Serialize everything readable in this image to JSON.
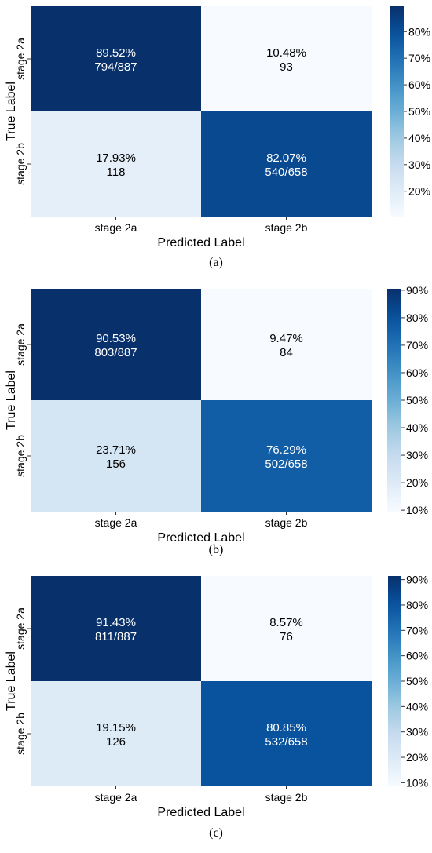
{
  "chart_data": [
    {
      "type": "heatmap",
      "caption": "(a)",
      "xlabel": "Predicted Label",
      "ylabel": "True Label",
      "x_categories": [
        "stage 2a",
        "stage 2b"
      ],
      "y_categories": [
        "stage 2a",
        "stage 2b"
      ],
      "cells": [
        [
          {
            "percent": 89.52,
            "text1": "89.52%",
            "text2": "794/887"
          },
          {
            "percent": 10.48,
            "text1": "10.48%",
            "text2": "93"
          }
        ],
        [
          {
            "percent": 17.93,
            "text1": "17.93%",
            "text2": "118"
          },
          {
            "percent": 82.07,
            "text1": "82.07%",
            "text2": "540/658"
          }
        ]
      ],
      "colorbar": {
        "min": 10.48,
        "max": 89.52,
        "ticks": [
          20,
          30,
          40,
          50,
          60,
          70,
          80
        ],
        "tick_labels": [
          "20%",
          "30%",
          "40%",
          "50%",
          "60%",
          "70%",
          "80%"
        ]
      }
    },
    {
      "type": "heatmap",
      "caption": "(b)",
      "xlabel": "Predicted Label",
      "ylabel": "True Label",
      "x_categories": [
        "stage 2a",
        "stage 2b"
      ],
      "y_categories": [
        "stage 2a",
        "stage 2b"
      ],
      "cells": [
        [
          {
            "percent": 90.53,
            "text1": "90.53%",
            "text2": "803/887"
          },
          {
            "percent": 9.47,
            "text1": "9.47%",
            "text2": "84"
          }
        ],
        [
          {
            "percent": 23.71,
            "text1": "23.71%",
            "text2": "156"
          },
          {
            "percent": 76.29,
            "text1": "76.29%",
            "text2": "502/658"
          }
        ]
      ],
      "colorbar": {
        "min": 9.47,
        "max": 90.53,
        "ticks": [
          10,
          20,
          30,
          40,
          50,
          60,
          70,
          80,
          90
        ],
        "tick_labels": [
          "10%",
          "20%",
          "30%",
          "40%",
          "50%",
          "60%",
          "70%",
          "80%",
          "90%"
        ]
      }
    },
    {
      "type": "heatmap",
      "caption": "(c)",
      "xlabel": "Predicted Label",
      "ylabel": "True Label",
      "x_categories": [
        "stage 2a",
        "stage 2b"
      ],
      "y_categories": [
        "stage 2a",
        "stage 2b"
      ],
      "cells": [
        [
          {
            "percent": 91.43,
            "text1": "91.43%",
            "text2": "811/887"
          },
          {
            "percent": 8.57,
            "text1": "8.57%",
            "text2": "76"
          }
        ],
        [
          {
            "percent": 19.15,
            "text1": "19.15%",
            "text2": "126"
          },
          {
            "percent": 80.85,
            "text1": "80.85%",
            "text2": "532/658"
          }
        ]
      ],
      "colorbar": {
        "min": 8.57,
        "max": 91.43,
        "ticks": [
          10,
          20,
          30,
          40,
          50,
          60,
          70,
          80,
          90
        ],
        "tick_labels": [
          "10%",
          "20%",
          "30%",
          "40%",
          "50%",
          "60%",
          "70%",
          "80%",
          "90%"
        ]
      }
    }
  ],
  "colors": {
    "colormap": [
      "#f7fbff",
      "#deebf7",
      "#c6dbef",
      "#9ecae1",
      "#6baed6",
      "#4292c6",
      "#2171b5",
      "#08519c",
      "#08306b"
    ],
    "dark_text": "#000000",
    "light_text": "#ffffff"
  }
}
